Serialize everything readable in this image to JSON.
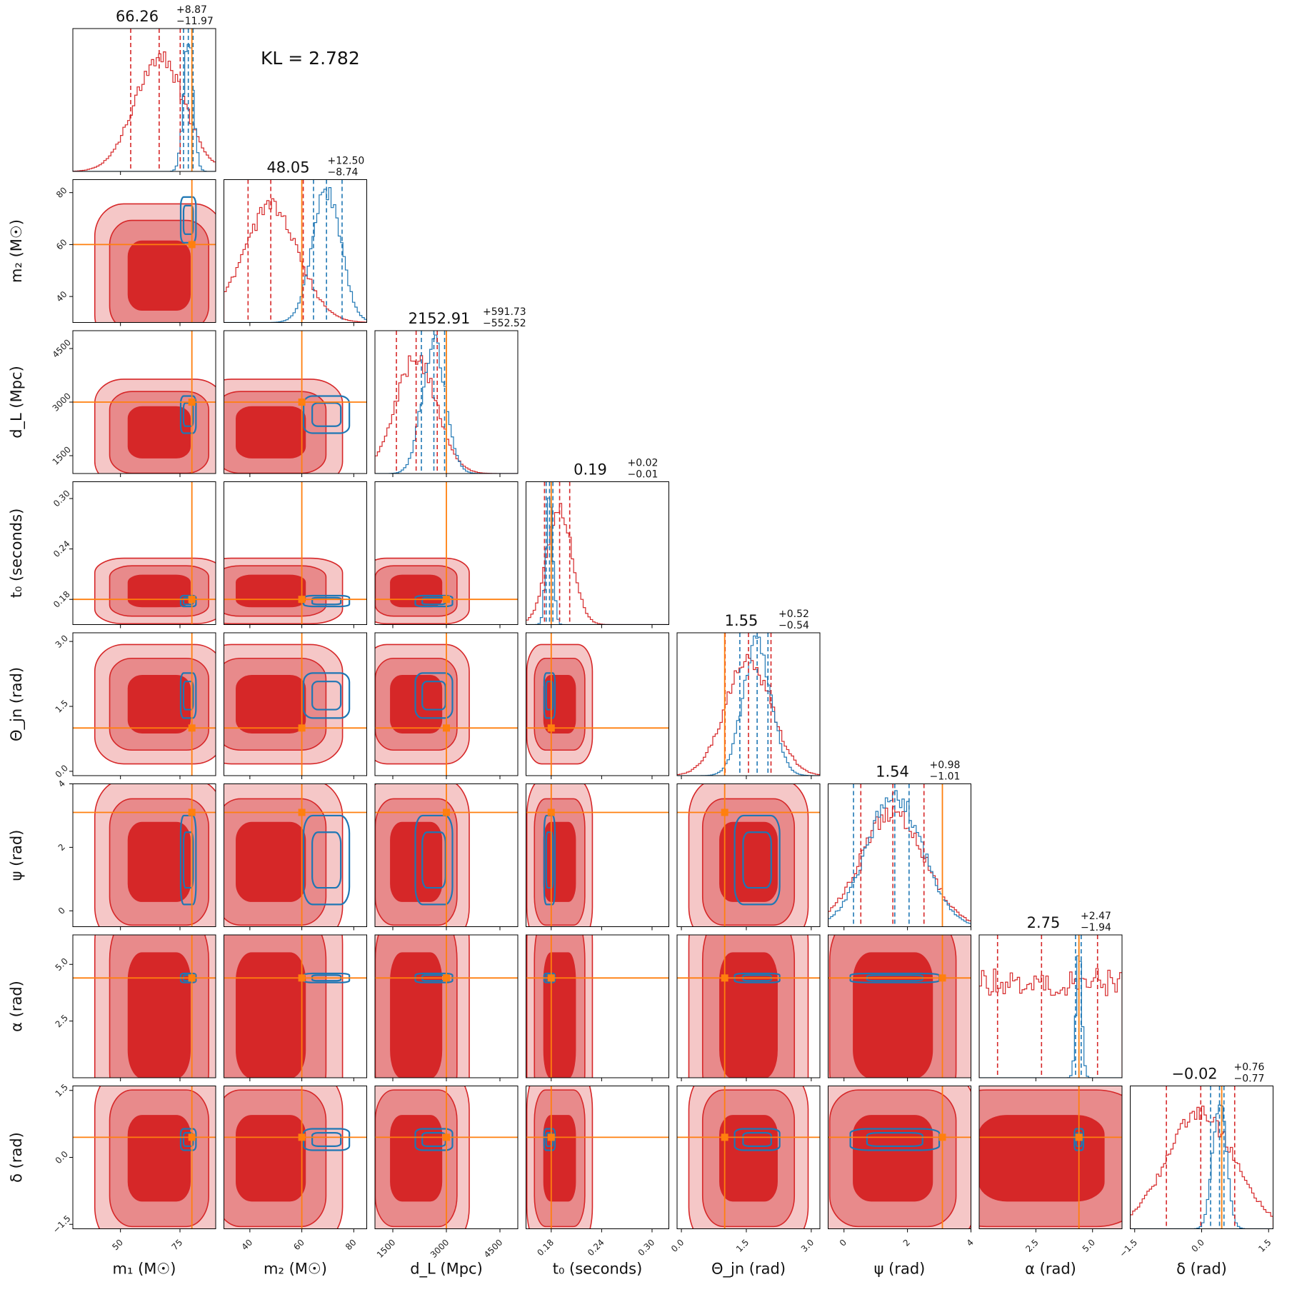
{
  "chart_data": {
    "type": "corner",
    "annotation": "KL = 2.782",
    "colors": {
      "posterior_a": "#d62728",
      "posterior_a_mid": "#e88a8b",
      "posterior_a_light": "#f5c7c7",
      "posterior_b": "#1f77b4",
      "injection": "#ff7f0e"
    },
    "parameters": [
      {
        "key": "m1",
        "label": "m₁ (M☉)",
        "range": [
          30,
          90
        ],
        "ticks": [
          50,
          75
        ],
        "tick_labels": [
          "50",
          "75"
        ],
        "truth": 80,
        "median": 66.26,
        "plus": "+8.87",
        "minus": "−11.97",
        "title_value": "66.26",
        "q_a": [
          54.3,
          66.26,
          75.1
        ],
        "q_b": [
          76.5,
          78.5,
          80.5
        ]
      },
      {
        "key": "m2",
        "label": "m₂ (M☉)",
        "range": [
          30,
          85
        ],
        "ticks": [
          40,
          60,
          80
        ],
        "tick_labels": [
          "40",
          "60",
          "80"
        ],
        "truth": 60,
        "median": 48.05,
        "plus": "+12.50",
        "minus": "−8.74",
        "title_value": "48.05",
        "q_a": [
          39.3,
          48.05,
          60.55
        ],
        "q_b": [
          64.5,
          69.5,
          75.5
        ]
      },
      {
        "key": "dL",
        "label": "d_L (Mpc)",
        "range": [
          1000,
          5000
        ],
        "ticks": [
          1500,
          3000,
          4500
        ],
        "tick_labels": [
          "1500",
          "3000",
          "4500"
        ],
        "truth": 3000,
        "median": 2152.91,
        "plus": "+591.73",
        "minus": "−552.52",
        "title_value": "2152.91",
        "q_a": [
          1600.39,
          2152.91,
          2744.64
        ],
        "q_b": [
          2300,
          2650,
          2950
        ]
      },
      {
        "key": "t0",
        "label": "t₀ (seconds)",
        "range": [
          0.15,
          0.32
        ],
        "ticks": [
          0.18,
          0.24,
          0.3
        ],
        "tick_labels": [
          "0.18",
          "0.24",
          "0.30"
        ],
        "truth": 0.18,
        "median": 0.19,
        "plus": "+0.02",
        "minus": "−0.01",
        "title_value": "0.19",
        "q_a": [
          0.172,
          0.19,
          0.202
        ],
        "q_b": [
          0.174,
          0.178,
          0.182
        ]
      },
      {
        "key": "thetajn",
        "label": "Θ_jn (rad)",
        "range": [
          -0.1,
          3.2
        ],
        "ticks": [
          0.0,
          1.5,
          3.0
        ],
        "tick_labels": [
          "0.0",
          "1.5",
          "3.0"
        ],
        "truth": 1.0,
        "median": 1.55,
        "plus": "+0.52",
        "minus": "−0.54",
        "title_value": "1.55",
        "q_a": [
          1.01,
          1.55,
          2.07
        ],
        "q_b": [
          1.35,
          1.75,
          2.0
        ]
      },
      {
        "key": "psi",
        "label": "ψ (rad)",
        "range": [
          -0.5,
          4.0
        ],
        "ticks": [
          0,
          2,
          4
        ],
        "tick_labels": [
          "0",
          "2",
          "4"
        ],
        "truth": 3.1,
        "median": 1.54,
        "plus": "+0.98",
        "minus": "−1.01",
        "title_value": "1.54",
        "q_a": [
          0.53,
          1.54,
          2.52
        ],
        "q_b": [
          0.3,
          1.6,
          2.05
        ]
      },
      {
        "key": "alpha",
        "label": "α (rad)",
        "range": [
          0.0,
          6.3
        ],
        "ticks": [
          2.5,
          5.0
        ],
        "tick_labels": [
          "2.5",
          "5.0"
        ],
        "truth": 4.4,
        "median": 2.75,
        "plus": "+2.47",
        "minus": "−1.94",
        "title_value": "2.75",
        "q_a": [
          0.81,
          2.75,
          5.22
        ],
        "q_b": [
          4.25,
          4.4,
          4.5
        ]
      },
      {
        "key": "delta",
        "label": "δ (rad)",
        "range": [
          -1.6,
          1.6
        ],
        "ticks": [
          -1.5,
          0.0,
          1.5
        ],
        "tick_labels": [
          "−1.5",
          "0.0",
          "1.5"
        ],
        "truth": 0.45,
        "median": -0.02,
        "plus": "+0.76",
        "minus": "−0.77",
        "title_value": "−0.02",
        "q_a": [
          -0.79,
          -0.02,
          0.74
        ],
        "q_b": [
          0.2,
          0.4,
          0.5
        ]
      }
    ]
  }
}
